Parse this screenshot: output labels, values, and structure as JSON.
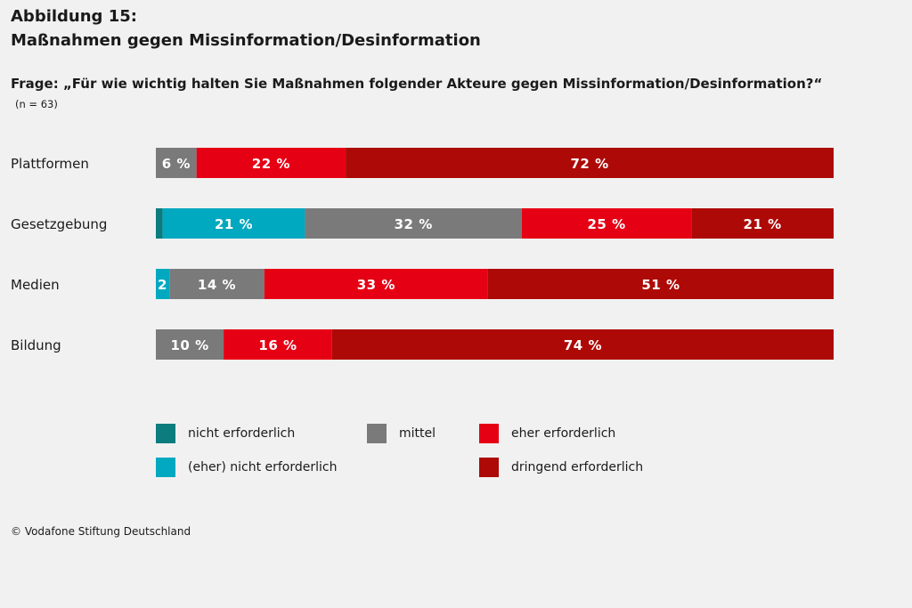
{
  "header": {
    "figure_label": "Abbildung 15:",
    "figure_title": "Maßnahmen gegen Missinformation/Desinformation",
    "question": "Frage: „Für wie wichtig halten Sie Maßnahmen folgender Akteure gegen Missinformation/Desinformation?“",
    "sample": "(n = 63)"
  },
  "chart_data": {
    "type": "bar",
    "orientation": "horizontal",
    "stacked": true,
    "percent_suffix": "%",
    "categories": [
      "Plattformen",
      "Gesetzgebung",
      "Medien",
      "Bildung"
    ],
    "series": [
      {
        "name": "nicht erforderlich",
        "color": "#0c7c7f",
        "values": [
          0,
          1,
          0,
          0
        ]
      },
      {
        "name": "(eher) nicht erforderlich",
        "color": "#00a8c0",
        "values": [
          0,
          21,
          2,
          0
        ]
      },
      {
        "name": "mittel",
        "color": "#7a7a7a",
        "values": [
          6,
          32,
          14,
          10
        ]
      },
      {
        "name": "eher erforderlich",
        "color": "#e60014",
        "values": [
          22,
          25,
          33,
          16
        ]
      },
      {
        "name": "dringend erforderlich",
        "color": "#ad0a07",
        "values": [
          72,
          21,
          51,
          74
        ]
      }
    ],
    "xlim": [
      0,
      100
    ],
    "grid": false,
    "legend_position": "bottom"
  },
  "footer": {
    "source": "© Vodafone Stiftung Deutschland"
  }
}
